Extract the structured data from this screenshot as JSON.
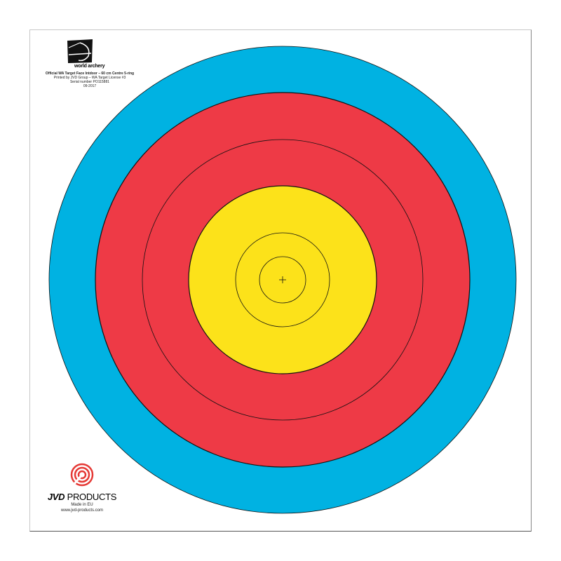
{
  "colors": {
    "outer_blue": "#00b2e2",
    "red": "#ee3a46",
    "yellow": "#fce21a",
    "line": "#111111",
    "jvd_red": "#e53935"
  },
  "target": {
    "rings_from_center": [
      "yellow",
      "yellow",
      "yellow",
      "yellow",
      "red",
      "red",
      "blue"
    ],
    "center_mark": "cross"
  },
  "header": {
    "logo_text": "world archery",
    "title": "Official WA Target Face Intdoor – 60 cm Centre 5-ring",
    "printed_by": "Printed by JVD Group – WA Target License #3",
    "serial": "Serial number PO115881",
    "date": "09-2017"
  },
  "footer": {
    "brand_bold": "JVD",
    "brand_rest": " PRODUCTS",
    "made_in": "Made in EU",
    "website": "www.jvd-products.com"
  }
}
